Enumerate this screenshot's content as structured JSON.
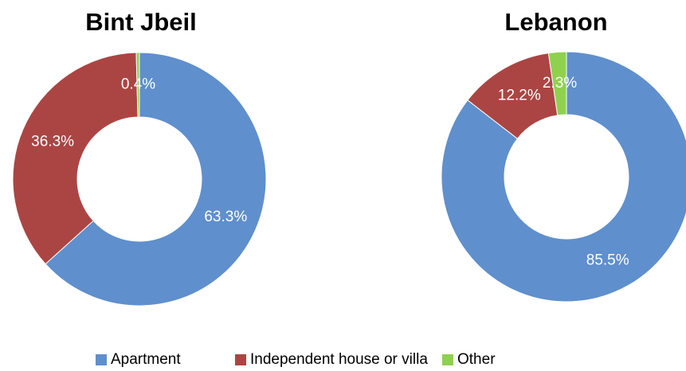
{
  "chart_data": [
    {
      "type": "pie",
      "title": "Bint Jbeil",
      "categories": [
        "Apartment",
        "Independent house or villa",
        "Other"
      ],
      "values": [
        63.3,
        36.3,
        0.4
      ],
      "value_labels": [
        "63.3%",
        "36.3%",
        "0.4%"
      ],
      "colors": [
        "#5f8fcd",
        "#ab4543",
        "#8fd14f"
      ]
    },
    {
      "type": "pie",
      "title": "Lebanon",
      "categories": [
        "Apartment",
        "Independent house or villa",
        "Other"
      ],
      "values": [
        85.5,
        12.2,
        2.3
      ],
      "value_labels": [
        "85.5%",
        "12.2%",
        "2.3%"
      ],
      "colors": [
        "#5f8fcd",
        "#ab4543",
        "#8fd14f"
      ]
    }
  ]
}
